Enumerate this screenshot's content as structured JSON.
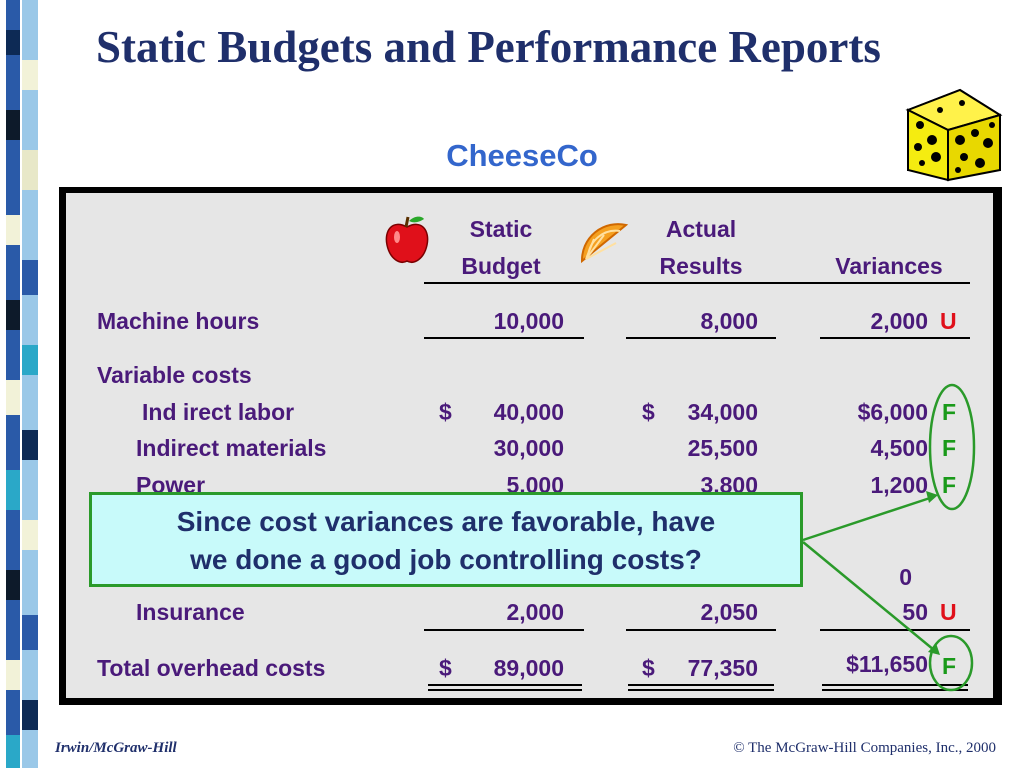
{
  "slide": {
    "title": "Static Budgets and Performance Reports",
    "subtitle": "CheeseCo",
    "colors": {
      "title": "#1f2f6b",
      "subtitle": "#3366cc",
      "text": "#4a1a7a",
      "unfavorable": "#e0101a",
      "favorable": "#1a9a1a",
      "callout_bg": "#c8fafa",
      "callout_border": "#2a9a2a"
    }
  },
  "icons": [
    "apple-icon",
    "orange-slice-icon",
    "cheese-icon"
  ],
  "table": {
    "headers": {
      "static_1": "Static",
      "static_2": "Budget",
      "actual_1": "Actual",
      "actual_2": "Results",
      "variances": "Variances"
    },
    "rows": {
      "machine_hours": {
        "label": "Machine hours",
        "budget": "10,000",
        "actual": "8,000",
        "variance": "2,000",
        "flag": "U"
      },
      "variable_costs": {
        "label": "Variable costs"
      },
      "indirect_labor": {
        "label": "Ind irect labor",
        "budget_sign": "$",
        "budget": "40,000",
        "actual_sign": "$",
        "actual": "34,000",
        "variance": "$6,000",
        "flag": "F"
      },
      "indirect_materials": {
        "label": "Indirect materials",
        "budget": "30,000",
        "actual": "25,500",
        "variance": "4,500",
        "flag": "F"
      },
      "power": {
        "label": "Power",
        "budget": "5,000",
        "actual": "3,800",
        "variance": "1,200",
        "flag": "F"
      },
      "hidden_row": {
        "variance": "0"
      },
      "insurance": {
        "label": "Insurance",
        "budget": "2,000",
        "actual": "2,050",
        "variance": "50",
        "flag": "U"
      },
      "total": {
        "label": "Total overhead costs",
        "budget_sign": "$",
        "budget": "89,000",
        "actual_sign": "$",
        "actual": "77,350",
        "variance": "$11,650",
        "flag": "F"
      }
    }
  },
  "callout": {
    "line1": "Since cost variances are favorable, have",
    "line2": "we done a good job controlling costs?"
  },
  "footer": {
    "left": "Irwin/McGraw-Hill",
    "right": "© The McGraw-Hill Companies, Inc., 2000"
  }
}
